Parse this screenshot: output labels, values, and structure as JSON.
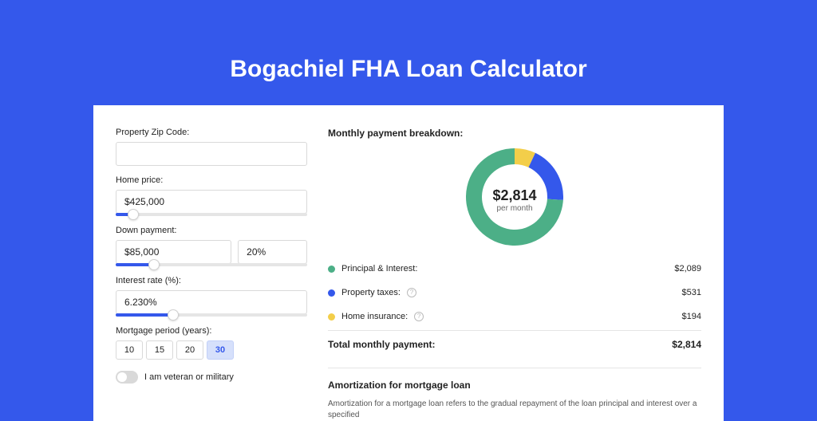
{
  "page": {
    "title": "Bogachiel FHA Loan Calculator",
    "background": "#3458eb"
  },
  "form": {
    "zip": {
      "label": "Property Zip Code:",
      "value": ""
    },
    "home_price": {
      "label": "Home price:",
      "value": "$425,000",
      "slider_pct": 9
    },
    "down_payment": {
      "label": "Down payment:",
      "amount": "$85,000",
      "pct": "20%",
      "slider_pct": 20
    },
    "interest": {
      "label": "Interest rate (%):",
      "value": "6.230%",
      "slider_pct": 30
    },
    "period": {
      "label": "Mortgage period (years):",
      "options": [
        "10",
        "15",
        "20",
        "30"
      ],
      "selected": "30"
    },
    "veteran": {
      "label": "I am veteran or military",
      "on": false
    }
  },
  "breakdown": {
    "heading": "Monthly payment breakdown:",
    "donut": {
      "center_amount": "$2,814",
      "center_sub": "per month",
      "slices": [
        {
          "key": "pi",
          "label": "Principal & Interest:",
          "value": "$2,089",
          "color": "#4caf87",
          "pct": 74,
          "info": false
        },
        {
          "key": "tax",
          "label": "Property taxes:",
          "value": "$531",
          "color": "#3458eb",
          "pct": 19,
          "info": true
        },
        {
          "key": "ins",
          "label": "Home insurance:",
          "value": "$194",
          "color": "#f3ce4a",
          "pct": 7,
          "info": true
        }
      ],
      "size": 122,
      "thickness": 20
    },
    "total": {
      "label": "Total monthly payment:",
      "value": "$2,814"
    }
  },
  "amortization": {
    "heading": "Amortization for mortgage loan",
    "text": "Amortization for a mortgage loan refers to the gradual repayment of the loan principal and interest over a specified"
  }
}
